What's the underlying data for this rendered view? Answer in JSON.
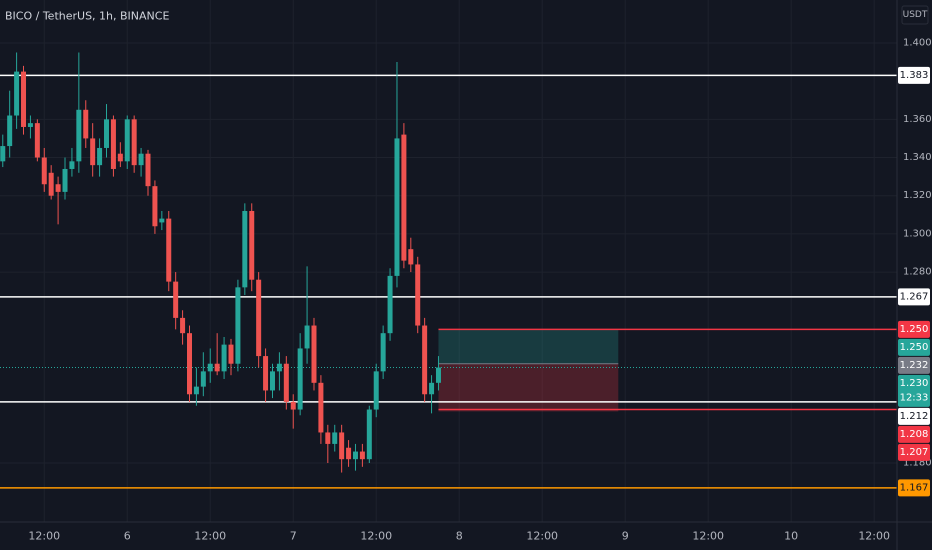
{
  "chart_data": {
    "type": "candlestick",
    "title": "BICO / TetherUS, 1h, BINANCE",
    "currency": "USDT",
    "up_color": "#26a69a",
    "down_color": "#ef5350",
    "grid": true,
    "xlim": [
      -18.4,
      111.3
    ],
    "xticks": [
      {
        "value": -12,
        "label": "12:00"
      },
      {
        "value": 0,
        "label": "6"
      },
      {
        "value": 12,
        "label": "12:00"
      },
      {
        "value": 24,
        "label": "7"
      },
      {
        "value": 36,
        "label": "12:00"
      },
      {
        "value": 48,
        "label": "8"
      },
      {
        "value": 60,
        "label": "12:00"
      },
      {
        "value": 72,
        "label": "9"
      },
      {
        "value": 84,
        "label": "12:00"
      },
      {
        "value": 96,
        "label": "10"
      },
      {
        "value": 108,
        "label": "12:00"
      }
    ],
    "ylim": [
      1.1491,
      1.4225
    ],
    "yticks": [
      {
        "value": 1.4,
        "label": "1.400"
      },
      {
        "value": 1.36,
        "label": "1.360"
      },
      {
        "value": 1.34,
        "label": "1.340"
      },
      {
        "value": 1.32,
        "label": "1.320"
      },
      {
        "value": 1.3,
        "label": "1.300"
      },
      {
        "value": 1.28,
        "label": "1.280"
      },
      {
        "value": 1.18,
        "label": "1.180"
      }
    ],
    "x": [
      -18,
      -17,
      -16,
      -15,
      -14,
      -13,
      -12,
      -11,
      -10,
      -9,
      -8,
      -7,
      -6,
      -5,
      -4,
      -3,
      -2,
      -1,
      0,
      1,
      2,
      3,
      4,
      5,
      6,
      7,
      8,
      9,
      10,
      11,
      12,
      13,
      14,
      15,
      16,
      17,
      18,
      19,
      20,
      21,
      22,
      23,
      24,
      25,
      26,
      27,
      28,
      29,
      30,
      31,
      32,
      33,
      34,
      35,
      36,
      37,
      38,
      39,
      40,
      41,
      42,
      43,
      44,
      45
    ],
    "open": [
      1.338,
      1.346,
      1.362,
      1.385,
      1.356,
      1.358,
      1.34,
      1.332,
      1.326,
      1.322,
      1.334,
      1.338,
      1.365,
      1.35,
      1.336,
      1.345,
      1.36,
      1.342,
      1.338,
      1.36,
      1.336,
      1.342,
      1.325,
      1.306,
      1.308,
      1.275,
      1.256,
      1.248,
      1.216,
      1.22,
      1.228,
      1.232,
      1.228,
      1.242,
      1.232,
      1.272,
      1.312,
      1.276,
      1.236,
      1.218,
      1.228,
      1.232,
      1.212,
      1.208,
      1.24,
      1.252,
      1.222,
      1.196,
      1.19,
      1.196,
      1.188,
      1.182,
      1.186,
      1.182,
      1.208,
      1.228,
      1.248,
      1.278,
      1.352,
      1.292,
      1.284,
      1.252,
      1.216,
      1.222
    ],
    "high": [
      1.352,
      1.375,
      1.395,
      1.388,
      1.362,
      1.36,
      1.345,
      1.336,
      1.33,
      1.34,
      1.345,
      1.395,
      1.37,
      1.358,
      1.35,
      1.368,
      1.362,
      1.348,
      1.362,
      1.362,
      1.345,
      1.344,
      1.328,
      1.312,
      1.312,
      1.28,
      1.26,
      1.252,
      1.23,
      1.238,
      1.24,
      1.248,
      1.246,
      1.245,
      1.276,
      1.316,
      1.316,
      1.28,
      1.24,
      1.232,
      1.238,
      1.236,
      1.216,
      1.248,
      1.283,
      1.256,
      1.226,
      1.2,
      1.2,
      1.2,
      1.192,
      1.19,
      1.19,
      1.21,
      1.232,
      1.252,
      1.282,
      1.39,
      1.358,
      1.298,
      1.288,
      1.256,
      1.226,
      1.236
    ],
    "low": [
      1.335,
      1.34,
      1.355,
      1.352,
      1.35,
      1.338,
      1.322,
      1.318,
      1.305,
      1.318,
      1.33,
      1.332,
      1.345,
      1.33,
      1.33,
      1.34,
      1.33,
      1.335,
      1.334,
      1.332,
      1.33,
      1.32,
      1.3,
      1.302,
      1.27,
      1.25,
      1.242,
      1.212,
      1.21,
      1.215,
      1.222,
      1.226,
      1.224,
      1.226,
      1.228,
      1.268,
      1.27,
      1.23,
      1.212,
      1.214,
      1.218,
      1.208,
      1.198,
      1.205,
      1.232,
      1.218,
      1.19,
      1.18,
      1.186,
      1.175,
      1.178,
      1.176,
      1.178,
      1.18,
      1.204,
      1.224,
      1.244,
      1.272,
      1.282,
      1.28,
      1.248,
      1.212,
      1.206,
      1.218
    ],
    "close": [
      1.346,
      1.362,
      1.385,
      1.356,
      1.358,
      1.34,
      1.326,
      1.32,
      1.322,
      1.334,
      1.338,
      1.365,
      1.35,
      1.336,
      1.345,
      1.36,
      1.334,
      1.338,
      1.36,
      1.336,
      1.342,
      1.325,
      1.304,
      1.308,
      1.275,
      1.256,
      1.248,
      1.216,
      1.22,
      1.228,
      1.232,
      1.228,
      1.242,
      1.232,
      1.272,
      1.312,
      1.276,
      1.236,
      1.218,
      1.228,
      1.232,
      1.212,
      1.208,
      1.24,
      1.252,
      1.222,
      1.196,
      1.19,
      1.196,
      1.182,
      1.182,
      1.186,
      1.182,
      1.208,
      1.228,
      1.248,
      1.278,
      1.35,
      1.286,
      1.284,
      1.252,
      1.216,
      1.222,
      1.23
    ],
    "hlines": [
      {
        "value": 1.383,
        "label": "1.383",
        "color": "#ffffff"
      },
      {
        "value": 1.267,
        "label": "1.267",
        "color": "#ffffff"
      },
      {
        "value": 1.25,
        "label": "1.250",
        "color": "#f23645",
        "from": 45
      },
      {
        "value": 1.212,
        "label": "1.212",
        "color": "#ffffff"
      },
      {
        "value": 1.208,
        "label": "1.208",
        "color": "#f23645",
        "from": 45
      },
      {
        "value": 1.167,
        "label": "1.167",
        "color": "#ff9800"
      }
    ],
    "position": {
      "x": [
        45,
        71
      ],
      "target": {
        "value": 1.25,
        "label": "1.250",
        "color": "#26a69a"
      },
      "entry": {
        "value": 1.232,
        "label": "1.232",
        "color": "#787b86"
      },
      "stop": {
        "value": 1.207,
        "label": "1.207",
        "color": "#f23645"
      }
    },
    "last_price": {
      "value": 1.23,
      "label": "1.230",
      "countdown": "12:33",
      "color": "#26a69a"
    }
  }
}
